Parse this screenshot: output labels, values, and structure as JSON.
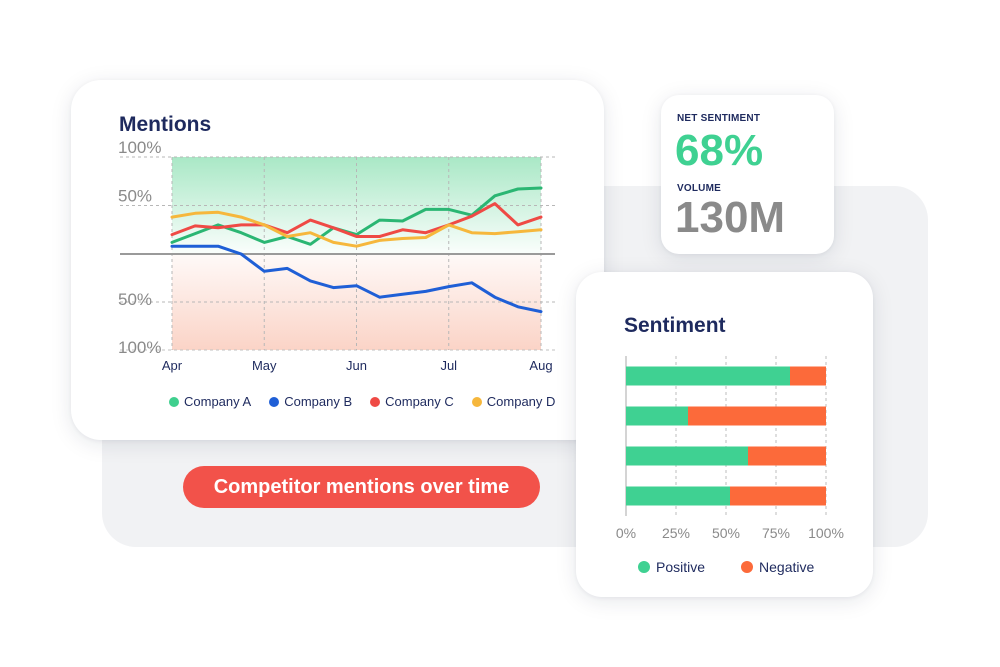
{
  "colors": {
    "company_a": "#2bb673",
    "company_b": "#1f5fd6",
    "company_c": "#ef4a45",
    "company_d": "#f6b73c",
    "positive": "#3fd192",
    "negative": "#fc6a3a",
    "accent_red": "#f2524a",
    "title_navy": "#1e2a5e"
  },
  "mentions": {
    "title": "Mentions",
    "legend": [
      "Company A",
      "Company B",
      "Company C",
      "Company D"
    ]
  },
  "stats": {
    "net_sentiment_label": "NET SENTIMENT",
    "net_sentiment_value": "68%",
    "volume_label": "VOLUME",
    "volume_value": "130M"
  },
  "caption": "Competitor mentions over time",
  "sentiment": {
    "title": "Sentiment",
    "legend": [
      "Positive",
      "Negative"
    ]
  },
  "chart_data": [
    {
      "type": "line",
      "title": "Mentions",
      "x": [
        0,
        0.25,
        0.5,
        0.75,
        1,
        1.25,
        1.5,
        1.75,
        2,
        2.25,
        2.5,
        2.75,
        3,
        3.25,
        3.5,
        3.75,
        4
      ],
      "x_tick_positions": [
        0,
        1,
        2,
        3,
        4
      ],
      "x_tick_labels": [
        "Apr",
        "May",
        "Jun",
        "Jul",
        "Aug"
      ],
      "y_tick_values": [
        100,
        50,
        -50,
        -100
      ],
      "y_tick_labels": [
        "100%",
        "50%",
        "50%",
        "100%"
      ],
      "ylim": [
        -100,
        100
      ],
      "grid": true,
      "series": [
        {
          "name": "Company A",
          "color": "#2bb673",
          "values": [
            12,
            21,
            30,
            22,
            12,
            18,
            10,
            27,
            20,
            35,
            34,
            46,
            46,
            40,
            60,
            67,
            68
          ]
        },
        {
          "name": "Company B",
          "color": "#1f5fd6",
          "values": [
            8,
            8,
            8,
            0,
            -18,
            -15,
            -28,
            -35,
            -33,
            -45,
            -42,
            -39,
            -34,
            -30,
            -45,
            -55,
            -60
          ]
        },
        {
          "name": "Company C",
          "color": "#ef4a45",
          "values": [
            20,
            29,
            27,
            30,
            30,
            22,
            35,
            27,
            18,
            18,
            25,
            22,
            30,
            39,
            52,
            30,
            38
          ]
        },
        {
          "name": "Company D",
          "color": "#f6b73c",
          "values": [
            38,
            42,
            43,
            38,
            30,
            18,
            22,
            12,
            8,
            14,
            16,
            17,
            30,
            22,
            21,
            23,
            25
          ]
        }
      ]
    },
    {
      "type": "bar",
      "orientation": "horizontal",
      "stacked": true,
      "categories": [
        "",
        "",
        "",
        ""
      ],
      "x_tick_labels": [
        "0%",
        "25%",
        "50%",
        "75%",
        "100%"
      ],
      "xlim": [
        0,
        100
      ],
      "grid": true,
      "series": [
        {
          "name": "Positive",
          "color": "#3fd192",
          "values": [
            82,
            31,
            61,
            52
          ]
        },
        {
          "name": "Negative",
          "color": "#fc6a3a",
          "values": [
            18,
            69,
            39,
            48
          ]
        }
      ]
    }
  ]
}
